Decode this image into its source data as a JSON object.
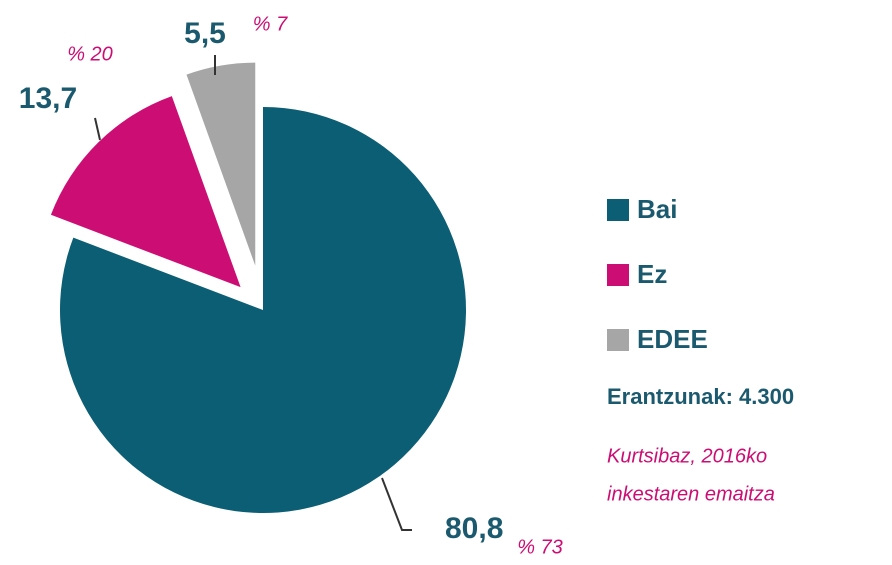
{
  "chart_data": {
    "type": "pie",
    "categories": [
      "Bai",
      "Ez",
      "EDEE"
    ],
    "values": [
      80.8,
      13.7,
      5.5
    ],
    "value_labels": [
      "80,8",
      "13,7",
      "5,5"
    ],
    "comparison_labels": [
      "% 73",
      "% 20",
      "% 7"
    ],
    "colors": [
      "#0b5e73",
      "#cc0e74",
      "#a6a6a6"
    ],
    "legend": "right",
    "responses": "Erantzunak: 4.300",
    "note": [
      "Kurtsibaz, 2016ko",
      "inkestaren emaitza"
    ]
  }
}
